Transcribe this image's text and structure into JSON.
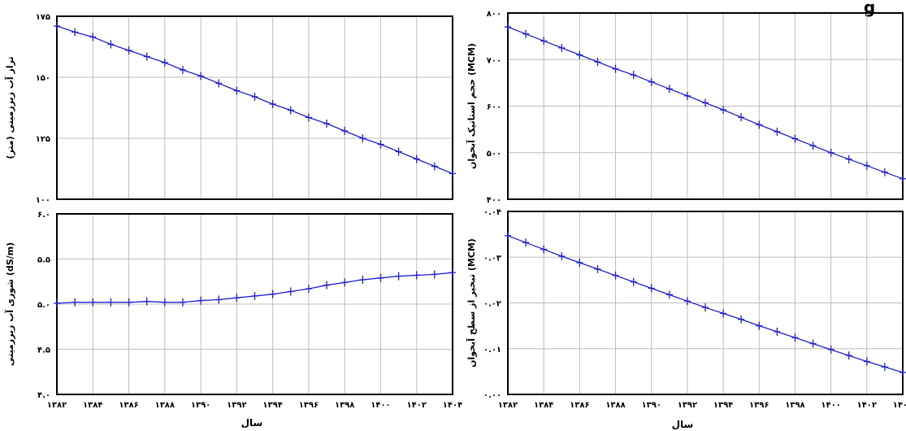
{
  "x_axis_label": "سال",
  "x_tick_labels": [
    "۱۳۸۲",
    "۱۳۸۴",
    "۱۳۸۶",
    "۱۳۸۸",
    "۱۳۹۰",
    "۱۳۹۲",
    "۱۳۹۴",
    "۱۳۹۶",
    "۱۳۹۸",
    "۱۴۰۰",
    "۱۴۰۲",
    "۱۴۰۴"
  ],
  "cut_title": "g",
  "line_color": "#1f1fd6",
  "chart_data": [
    {
      "type": "line",
      "ylabel": "تراز آب زیرزمینی (متر)",
      "ylim": [
        100,
        175
      ],
      "y_ticks": [
        100,
        125,
        150,
        175
      ],
      "y_tick_labels": [
        "۱۰۰",
        "۱۲۵",
        "۱۵۰",
        "۱۷۵"
      ],
      "x": [
        1382,
        1383,
        1384,
        1385,
        1386,
        1387,
        1388,
        1389,
        1390,
        1391,
        1392,
        1393,
        1394,
        1395,
        1396,
        1397,
        1398,
        1399,
        1400,
        1401,
        1402,
        1403,
        1404
      ],
      "values": [
        171.0,
        168.5,
        166.5,
        163.5,
        161.0,
        158.5,
        156.0,
        153.0,
        150.5,
        147.5,
        144.5,
        142.0,
        139.0,
        136.5,
        133.5,
        131.0,
        128.0,
        125.0,
        122.5,
        119.5,
        116.5,
        113.5,
        110.5
      ],
      "grid": true
    },
    {
      "type": "line",
      "ylabel": "حجم استاتیک آبخوان (MCM)",
      "ylim": [
        400,
        800
      ],
      "y_ticks": [
        400,
        500,
        600,
        700,
        800
      ],
      "y_tick_labels": [
        "۴۰۰",
        "۵۰۰",
        "۶۰۰",
        "۷۰۰",
        "۸۰۰"
      ],
      "x": [
        1382,
        1383,
        1384,
        1385,
        1386,
        1387,
        1388,
        1389,
        1390,
        1391,
        1392,
        1393,
        1394,
        1395,
        1396,
        1397,
        1398,
        1399,
        1400,
        1401,
        1402,
        1403,
        1404
      ],
      "values": [
        770,
        755,
        740,
        725,
        710,
        695,
        680,
        667,
        652,
        637,
        622,
        607,
        592,
        576,
        560,
        545,
        530,
        515,
        500,
        486,
        472,
        458,
        444
      ],
      "grid": true
    },
    {
      "type": "line",
      "ylabel": "شوری آب زیرزمینی (dS/m)",
      "ylim": [
        4.0,
        6.0
      ],
      "y_ticks": [
        4.0,
        4.5,
        5.0,
        5.5,
        6.0
      ],
      "y_tick_labels": [
        "۴.۰",
        "۴.۵",
        "۵.۰",
        "۵.۵",
        "۶.۰"
      ],
      "x": [
        1382,
        1383,
        1384,
        1385,
        1386,
        1387,
        1388,
        1389,
        1390,
        1391,
        1392,
        1393,
        1394,
        1395,
        1396,
        1397,
        1398,
        1399,
        1400,
        1401,
        1402,
        1403,
        1404
      ],
      "values": [
        5.01,
        5.02,
        5.02,
        5.02,
        5.02,
        5.03,
        5.02,
        5.02,
        5.04,
        5.05,
        5.07,
        5.09,
        5.11,
        5.14,
        5.17,
        5.21,
        5.24,
        5.27,
        5.29,
        5.31,
        5.32,
        5.33,
        5.35
      ],
      "grid": true
    },
    {
      "type": "line",
      "ylabel": "تبخیر از سطح آبخوان (MCM)",
      "ylim": [
        0.0,
        0.04
      ],
      "y_ticks": [
        0.0,
        0.01,
        0.02,
        0.03,
        0.04
      ],
      "y_tick_labels": [
        "۰.۰۰",
        "۰.۰۱",
        "۰.۰۲",
        "۰.۰۳",
        "۰.۰۴"
      ],
      "x": [
        1382,
        1383,
        1384,
        1385,
        1386,
        1387,
        1388,
        1389,
        1390,
        1391,
        1392,
        1393,
        1394,
        1395,
        1396,
        1397,
        1398,
        1399,
        1400,
        1401,
        1402,
        1403,
        1404
      ],
      "values": [
        0.0347,
        0.0332,
        0.0317,
        0.0302,
        0.0288,
        0.0274,
        0.026,
        0.0246,
        0.0232,
        0.0218,
        0.0204,
        0.019,
        0.0177,
        0.0164,
        0.015,
        0.0137,
        0.0124,
        0.0111,
        0.0098,
        0.0085,
        0.0072,
        0.006,
        0.0048
      ],
      "grid": true
    }
  ]
}
